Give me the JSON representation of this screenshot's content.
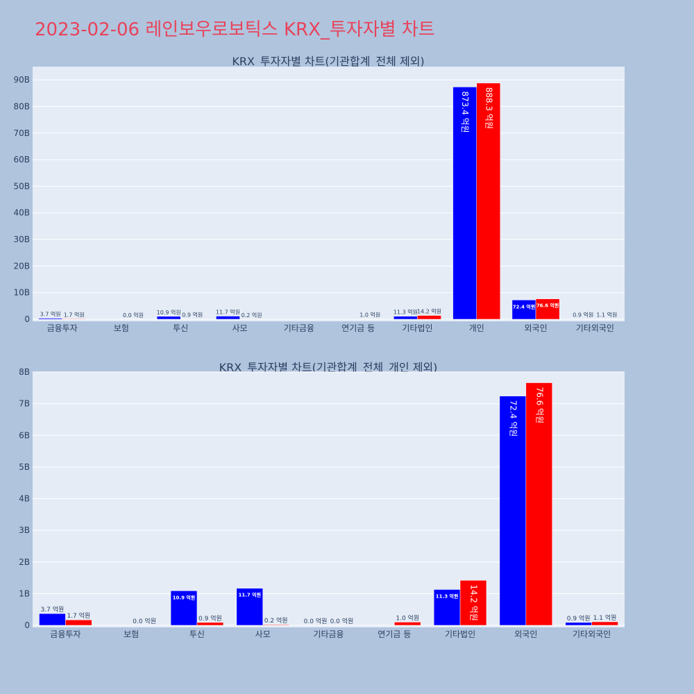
{
  "page": {
    "title": "2023-02-06 레인보우로보틱스 KRX_투자자별 차트"
  },
  "colors": {
    "background": "#b0c4de",
    "plot_bg": "#e5ecf6",
    "title": "#e8435a",
    "series_a": "#0000ff",
    "series_b": "#ff0000",
    "text": "#2a3f5f",
    "grid": "#ffffff"
  },
  "chart_data": [
    {
      "type": "bar",
      "title": "KRX_투자자별 차트(기관합계_전체 제외)",
      "categories": [
        "금융투자",
        "보험",
        "투신",
        "사모",
        "기타금융",
        "연기금 등",
        "기타법인",
        "개인",
        "외국인",
        "기타외국인"
      ],
      "yticks": [
        "0",
        "10B",
        "20B",
        "30B",
        "40B",
        "50B",
        "60B",
        "70B",
        "80B",
        "90B"
      ],
      "ylim": [
        0,
        95000000000
      ],
      "grid": true,
      "series": [
        {
          "values": [
            370000000,
            null,
            1090000000,
            1170000000,
            null,
            null,
            1130000000,
            87340000000,
            7240000000,
            90000000
          ],
          "labels": [
            "3.7 억원",
            "",
            "10.9 억원",
            "11.7 억원",
            "",
            "",
            "11.3 억원",
            "873.4 억원",
            "72.4 억원",
            "0.9 억원"
          ]
        },
        {
          "values": [
            170000000,
            0,
            90000000,
            20000000,
            null,
            100000000,
            1420000000,
            88830000000,
            7660000000,
            110000000
          ],
          "labels": [
            "1.7 억원",
            "0.0 억원",
            "0.9 억원",
            "0.2 억원",
            "",
            "1.0 억원",
            "14.2 억원",
            "888.3 억원",
            "76.6 억원",
            "1.1 억원"
          ]
        }
      ]
    },
    {
      "type": "bar",
      "title": "KRX_투자자별 차트(기관합계_전체_개인 제외)",
      "categories": [
        "금융투자",
        "보험",
        "투신",
        "사모",
        "기타금융",
        "연기금 등",
        "기타법인",
        "외국인",
        "기타외국인"
      ],
      "yticks": [
        "0",
        "1B",
        "2B",
        "3B",
        "4B",
        "5B",
        "6B",
        "7B",
        "8B"
      ],
      "ylim": [
        0,
        8000000000
      ],
      "grid": true,
      "series": [
        {
          "values": [
            370000000,
            null,
            1090000000,
            1170000000,
            0,
            null,
            1130000000,
            7240000000,
            90000000
          ],
          "labels": [
            "3.7 억원",
            "",
            "10.9 억원",
            "11.7 억원",
            "0.0 억원",
            "",
            "11.3 억원",
            "72.4 억원",
            "0.9 억원"
          ]
        },
        {
          "values": [
            170000000,
            0,
            90000000,
            20000000,
            0,
            100000000,
            1420000000,
            7660000000,
            110000000
          ],
          "labels": [
            "1.7 억원",
            "0.0 억원",
            "0.9 억원",
            "0.2 억원",
            "0.0 억원",
            "1.0 억원",
            "14.2 억원",
            "76.6 억원",
            "1.1 억원"
          ]
        }
      ]
    }
  ]
}
